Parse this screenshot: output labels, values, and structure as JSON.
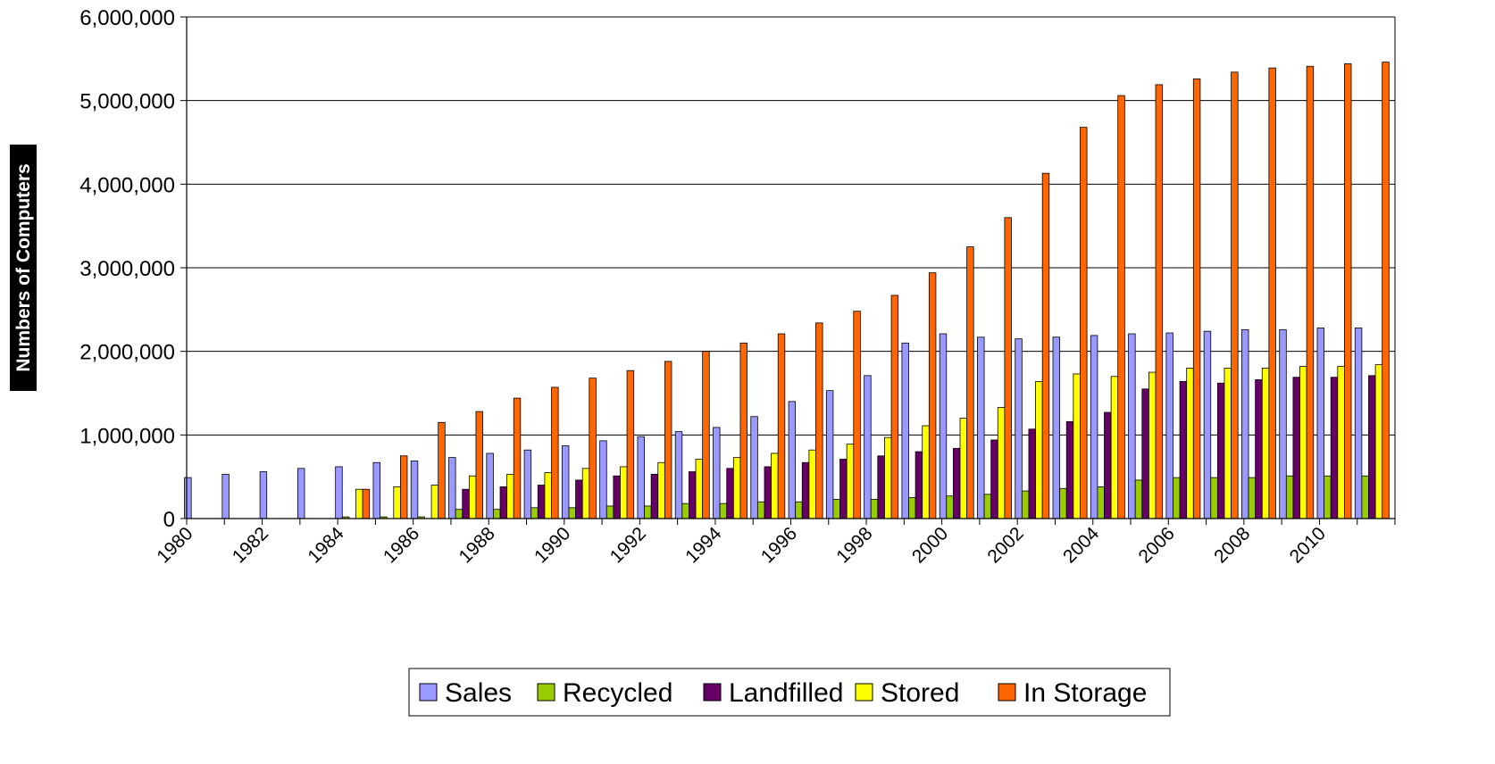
{
  "chart_data": {
    "type": "bar",
    "title": "",
    "xlabel": "",
    "ylabel": "Numbers of Computers",
    "ylim": [
      0,
      6000000
    ],
    "yticks": [
      0,
      1000000,
      2000000,
      3000000,
      4000000,
      5000000,
      6000000
    ],
    "ytick_labels": [
      "0",
      "1,000,000",
      "2,000,000",
      "3,000,000",
      "4,000,000",
      "5,000,000",
      "6,000,000"
    ],
    "categories": [
      "1980",
      "1981",
      "1982",
      "1983",
      "1984",
      "1985",
      "1986",
      "1987",
      "1988",
      "1989",
      "1990",
      "1991",
      "1992",
      "1993",
      "1994",
      "1995",
      "1996",
      "1997",
      "1998",
      "1999",
      "2000",
      "2001",
      "2002",
      "2003",
      "2004",
      "2005",
      "2006",
      "2007",
      "2008",
      "2009",
      "2010",
      "2011"
    ],
    "xtick_labels": [
      "1980",
      "",
      "1982",
      "",
      "1984",
      "",
      "1986",
      "",
      "1988",
      "",
      "1990",
      "",
      "1992",
      "",
      "1994",
      "",
      "1996",
      "",
      "1998",
      "",
      "2000",
      "",
      "2002",
      "",
      "2004",
      "",
      "2006",
      "",
      "2008",
      "",
      "2010",
      ""
    ],
    "grid": true,
    "legend_position": "bottom",
    "series": [
      {
        "name": "Sales",
        "color": "#9999ff",
        "values": [
          490000,
          530000,
          560000,
          600000,
          620000,
          670000,
          690000,
          730000,
          780000,
          820000,
          870000,
          930000,
          980000,
          1040000,
          1090000,
          1220000,
          1400000,
          1530000,
          1710000,
          2100000,
          2210000,
          2170000,
          2150000,
          2170000,
          2190000,
          2210000,
          2220000,
          2240000,
          2260000,
          2260000,
          2280000,
          2280000
        ]
      },
      {
        "name": "Recycled",
        "color": "#99cc00",
        "values": [
          0,
          0,
          0,
          0,
          20000,
          20000,
          20000,
          110000,
          110000,
          130000,
          130000,
          150000,
          150000,
          180000,
          180000,
          200000,
          200000,
          230000,
          230000,
          250000,
          270000,
          290000,
          330000,
          360000,
          380000,
          460000,
          490000,
          490000,
          490000,
          510000,
          510000,
          510000
        ]
      },
      {
        "name": "Landfilled",
        "color": "#660066",
        "values": [
          0,
          0,
          0,
          0,
          0,
          0,
          0,
          350000,
          380000,
          400000,
          460000,
          510000,
          530000,
          560000,
          600000,
          620000,
          670000,
          710000,
          750000,
          800000,
          840000,
          940000,
          1070000,
          1160000,
          1270000,
          1550000,
          1640000,
          1620000,
          1660000,
          1690000,
          1690000,
          1710000
        ]
      },
      {
        "name": "Stored",
        "color": "#ffff00",
        "values": [
          0,
          0,
          0,
          0,
          350000,
          380000,
          400000,
          510000,
          530000,
          550000,
          600000,
          620000,
          670000,
          710000,
          730000,
          780000,
          820000,
          890000,
          970000,
          1110000,
          1200000,
          1330000,
          1640000,
          1730000,
          1700000,
          1750000,
          1800000,
          1800000,
          1800000,
          1820000,
          1820000,
          1840000
        ]
      },
      {
        "name": "In Storage",
        "color": "#ff6600",
        "values": [
          0,
          0,
          0,
          0,
          350000,
          750000,
          1150000,
          1280000,
          1440000,
          1570000,
          1680000,
          1770000,
          1880000,
          2000000,
          2100000,
          2210000,
          2340000,
          2480000,
          2670000,
          2940000,
          3250000,
          3600000,
          4130000,
          4680000,
          5060000,
          5190000,
          5260000,
          5340000,
          5390000,
          5410000,
          5440000,
          5460000
        ]
      }
    ]
  }
}
